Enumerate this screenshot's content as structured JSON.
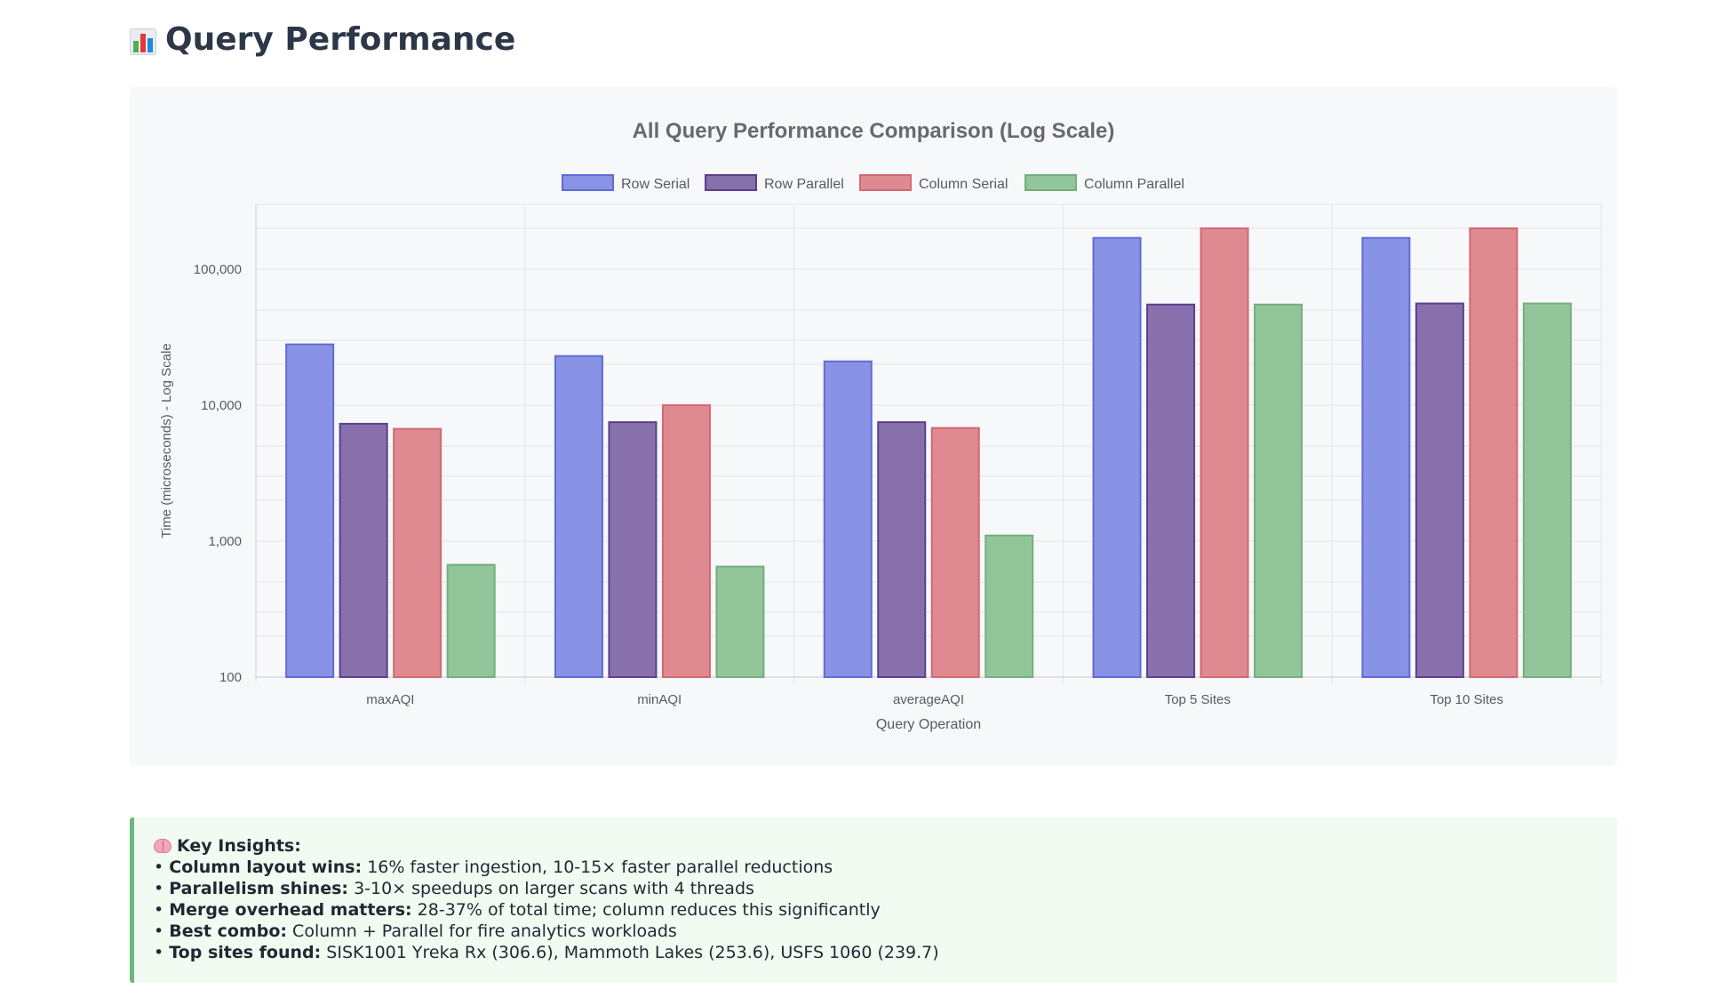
{
  "page": {
    "title": "Query Performance",
    "title_icon": "bar-chart-icon"
  },
  "chart_data": {
    "type": "bar",
    "title": "All Query Performance Comparison (Log Scale)",
    "xlabel": "Query Operation",
    "ylabel": "Time (microseconds) - Log Scale",
    "yscale": "log",
    "ylim": [
      100,
      300000
    ],
    "yticks": [
      100,
      1000,
      10000,
      100000
    ],
    "ytick_labels": [
      "100",
      "1,000",
      "10,000",
      "100,000"
    ],
    "grid": true,
    "legend_position": "top-center",
    "categories": [
      "maxAQI",
      "minAQI",
      "averageAQI",
      "Top 5 Sites",
      "Top 10 Sites"
    ],
    "series": [
      {
        "name": "Row Serial",
        "color": "#8893e6",
        "border": "#5f6bd8",
        "values": [
          28000,
          23000,
          21000,
          170000,
          170000
        ]
      },
      {
        "name": "Row Parallel",
        "color": "#8870ad",
        "border": "#5b3f8c",
        "values": [
          7300,
          7500,
          7500,
          55000,
          56000
        ]
      },
      {
        "name": "Column Serial",
        "color": "#df8a90",
        "border": "#cf6b73",
        "values": [
          6700,
          10000,
          6800,
          200000,
          200000
        ]
      },
      {
        "name": "Column Parallel",
        "color": "#93c59a",
        "border": "#72b07c",
        "values": [
          670,
          650,
          1100,
          55000,
          56000
        ]
      }
    ]
  },
  "insights": {
    "heading": "Key Insights:",
    "heading_icon": "brain-icon",
    "items": [
      {
        "label": "Column layout wins:",
        "text": "16% faster ingestion, 10-15× faster parallel reductions"
      },
      {
        "label": "Parallelism shines:",
        "text": "3-10× speedups on larger scans with 4 threads"
      },
      {
        "label": "Merge overhead matters:",
        "text": "28-37% of total time; column reduces this significantly"
      },
      {
        "label": "Best combo:",
        "text": "Column + Parallel for fire analytics workloads"
      },
      {
        "label": "Top sites found:",
        "text": "SISK1001 Yreka Rx (306.6), Mammoth Lakes (253.6), USFS 1060 (239.7)"
      }
    ]
  }
}
